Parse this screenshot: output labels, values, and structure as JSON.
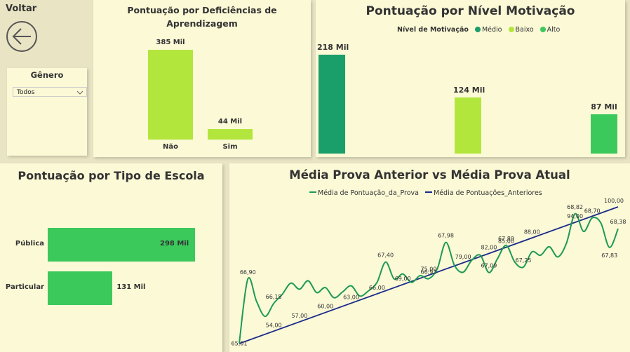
{
  "nav": {
    "back_label": "Voltar"
  },
  "filter": {
    "title": "Gênero",
    "selected": "Todos"
  },
  "deficiencia": {
    "title_line1": "Pontuação por Deficiências de",
    "title_line2": "Aprendizagem",
    "chart_data": {
      "type": "bar",
      "categories": [
        "Não",
        "Sim"
      ],
      "values": [
        385,
        44
      ],
      "value_labels": [
        "385 Mil",
        "44 Mil"
      ],
      "color": "#b3e63d"
    }
  },
  "motivacao": {
    "title": "Pontuação por Nível Motivação",
    "legend_title": "Nível de Motivação",
    "chart_data": {
      "type": "bar",
      "categories": [
        "Médio",
        "Baixo",
        "Alto"
      ],
      "values": [
        218,
        124,
        87
      ],
      "value_labels": [
        "218 Mil",
        "124 Mil",
        "87 Mil"
      ],
      "colors": [
        "#1a9e6a",
        "#b3e63d",
        "#3cc95c"
      ]
    }
  },
  "escola": {
    "title": "Pontuação por Tipo de Escola",
    "chart_data": {
      "type": "bar",
      "categories": [
        "Pública",
        "Particular"
      ],
      "values": [
        298,
        131
      ],
      "value_labels": [
        "298 Mil",
        "131 Mil"
      ],
      "color": "#3cc95c"
    }
  },
  "provas": {
    "title": "Média Prova Anterior vs Média Prova Atual",
    "chart_data": {
      "type": "line",
      "series": [
        {
          "name": "Média de Pontuação_da_Prova",
          "color": "#1e9a55",
          "values": [
            65.01,
            66.9,
            66.25,
            65.8,
            66.18,
            66.45,
            66.78,
            66.6,
            66.85,
            66.5,
            66.65,
            66.35,
            66.52,
            66.7,
            66.4,
            66.55,
            66.8,
            67.4,
            66.9,
            67.05,
            66.8,
            67.0,
            66.91,
            67.2,
            67.98,
            67.3,
            67.1,
            67.45,
            67.6,
            67.09,
            67.5,
            67.89,
            67.4,
            67.25,
            67.7,
            67.6,
            67.85,
            67.55,
            67.95,
            68.82,
            68.3,
            68.7,
            68.55,
            67.83,
            68.38
          ],
          "point_labels": [
            [
              0,
              "65,01"
            ],
            [
              1,
              "66,90"
            ],
            [
              4,
              "66,18"
            ],
            [
              17,
              "67,40"
            ],
            [
              22,
              "66,91"
            ],
            [
              24,
              "67,98"
            ],
            [
              29,
              "67,09"
            ],
            [
              31,
              "67,89"
            ],
            [
              33,
              "67,25"
            ],
            [
              39,
              "68,82"
            ],
            [
              41,
              "68,70"
            ],
            [
              43,
              "67,83"
            ],
            [
              44,
              "68,38"
            ]
          ]
        },
        {
          "name": "Média de Pontuações_Anteriores",
          "color": "#1a2a8a",
          "x_labels": [
            [
              4,
              "54,00"
            ],
            [
              7,
              "57,00"
            ],
            [
              10,
              "60,00"
            ],
            [
              13,
              "63,00"
            ],
            [
              16,
              "66,00"
            ],
            [
              19,
              "69,00"
            ],
            [
              22,
              "75,00"
            ],
            [
              26,
              "79,00"
            ],
            [
              29,
              "82,00"
            ],
            [
              31,
              "85,00"
            ],
            [
              34,
              "88,00"
            ],
            [
              39,
              "94,00"
            ],
            [
              44,
              "100,00"
            ]
          ],
          "range": [
            50,
            100
          ]
        }
      ]
    }
  }
}
